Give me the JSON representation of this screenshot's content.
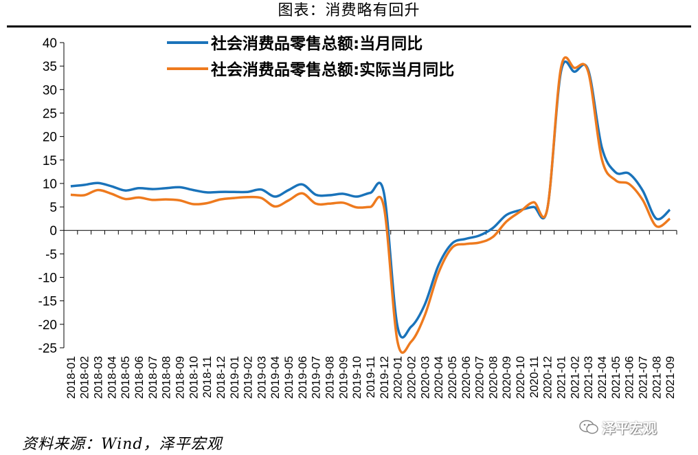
{
  "header": {
    "title": "图表：消费略有回升"
  },
  "footer": {
    "source": "资料来源：Wind，泽平宏观",
    "watermark": "泽平宏观",
    "watermark_icon": "wechat-icon"
  },
  "colors": {
    "series1": "#1A73BA",
    "series2": "#EE7A1E",
    "axis": "#000000"
  },
  "chart_data": {
    "type": "line",
    "title": "图表：消费略有回升",
    "xlabel": "",
    "ylabel": "",
    "ylim": [
      -25,
      40
    ],
    "yticks": [
      40,
      35,
      30,
      25,
      20,
      15,
      10,
      5,
      0,
      -5,
      -10,
      -15,
      -20,
      -25
    ],
    "grid": false,
    "legend": "top-center",
    "categories": [
      "2018-01",
      "2018-02",
      "2018-03",
      "2018-04",
      "2018-05",
      "2018-06",
      "2018-07",
      "2018-08",
      "2018-09",
      "2018-10",
      "2018-11",
      "2018-12",
      "2019-01",
      "2019-02",
      "2019-03",
      "2019-04",
      "2019-05",
      "2019-06",
      "2019-07",
      "2019-08",
      "2019-09",
      "2019-10",
      "2019-11",
      "2019-12",
      "2020-01",
      "2020-02",
      "2020-03",
      "2020-04",
      "2020-05",
      "2020-06",
      "2020-07",
      "2020-08",
      "2020-09",
      "2020-10",
      "2020-11",
      "2020-12",
      "2021-01",
      "2021-02",
      "2021-03",
      "2021-04",
      "2021-05",
      "2021-06",
      "2021-07",
      "2021-08",
      "2021-09"
    ],
    "series": [
      {
        "name": "社会消费品零售总额:当月同比",
        "color": "#1A73BA",
        "values": [
          9.4,
          9.7,
          10.1,
          9.4,
          8.5,
          9.0,
          8.8,
          9.0,
          9.2,
          8.6,
          8.1,
          8.2,
          8.2,
          8.2,
          8.7,
          7.2,
          8.6,
          9.8,
          7.6,
          7.5,
          7.8,
          7.2,
          8.0,
          8.0,
          -20.5,
          -20.5,
          -15.8,
          -7.5,
          -2.8,
          -1.8,
          -1.1,
          0.5,
          3.3,
          4.3,
          5.0,
          4.6,
          33.8,
          33.8,
          34.2,
          17.7,
          12.4,
          12.1,
          8.5,
          2.5,
          4.4
        ]
      },
      {
        "name": "社会消费品零售总额:实际当月同比",
        "color": "#EE7A1E",
        "values": [
          7.6,
          7.5,
          8.6,
          7.8,
          6.7,
          7.0,
          6.5,
          6.6,
          6.4,
          5.6,
          5.8,
          6.6,
          6.9,
          7.1,
          6.9,
          5.1,
          6.4,
          7.9,
          5.7,
          5.7,
          5.9,
          4.9,
          5.0,
          5.0,
          -23.7,
          -23.7,
          -18.1,
          -9.1,
          -3.7,
          -2.9,
          -2.6,
          -1.4,
          1.9,
          4.0,
          6.0,
          4.6,
          34.6,
          34.6,
          33.8,
          15.2,
          10.7,
          9.9,
          6.5,
          0.9,
          2.5
        ]
      }
    ]
  }
}
